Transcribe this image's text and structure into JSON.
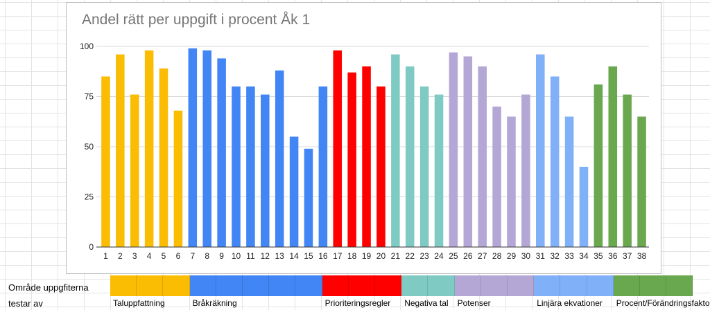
{
  "sheet": {
    "row_label_1": "Område uppgfiterna",
    "row_label_2": "testar av"
  },
  "groups": [
    {
      "name": "Taluppfattning",
      "color": "#fbbc04",
      "tasks": [
        1,
        2,
        3,
        4,
        5,
        6
      ]
    },
    {
      "name": "Bråkräkning",
      "color": "#4285f4",
      "tasks": [
        7,
        8,
        9,
        10,
        11,
        12,
        13,
        14,
        15,
        16
      ]
    },
    {
      "name": "Prioriteringsregler",
      "color": "#ff0000",
      "tasks": [
        17,
        18,
        19,
        20
      ]
    },
    {
      "name": "Negativa tal",
      "color": "#7fcbc4",
      "tasks": [
        21,
        22,
        23,
        24
      ]
    },
    {
      "name": "Potenser",
      "color": "#b4a7d6",
      "tasks": [
        25,
        26,
        27,
        28,
        29,
        30
      ]
    },
    {
      "name": "Linjära ekvationer",
      "color": "#80b0f8",
      "tasks": [
        31,
        32,
        33,
        34
      ]
    },
    {
      "name": "Procent/Förändringsfakto",
      "color": "#6aa84f",
      "tasks": [
        35,
        36,
        37,
        38
      ]
    }
  ],
  "chart_data": {
    "type": "bar",
    "title": "Andel rätt per uppgift i procent Åk 1",
    "xlabel": "",
    "ylabel": "",
    "ylim": [
      0,
      100
    ],
    "yticks": [
      0,
      25,
      50,
      75,
      100
    ],
    "grid": true,
    "legend": "none",
    "categories": [
      "1",
      "2",
      "3",
      "4",
      "5",
      "6",
      "7",
      "8",
      "9",
      "10",
      "11",
      "12",
      "13",
      "14",
      "15",
      "16",
      "17",
      "18",
      "19",
      "20",
      "21",
      "22",
      "23",
      "24",
      "25",
      "26",
      "27",
      "28",
      "29",
      "30",
      "31",
      "32",
      "33",
      "34",
      "35",
      "36",
      "37",
      "38"
    ],
    "values": [
      85,
      96,
      76,
      98,
      89,
      68,
      99,
      98,
      94,
      80,
      80,
      76,
      88,
      55,
      49,
      80,
      98,
      87,
      90,
      80,
      96,
      90,
      80,
      76,
      97,
      95,
      90,
      70,
      65,
      76,
      96,
      85,
      65,
      40,
      81,
      90,
      76,
      65
    ],
    "bar_colors": [
      "#fbbc04",
      "#fbbc04",
      "#fbbc04",
      "#fbbc04",
      "#fbbc04",
      "#fbbc04",
      "#4285f4",
      "#4285f4",
      "#4285f4",
      "#4285f4",
      "#4285f4",
      "#4285f4",
      "#4285f4",
      "#4285f4",
      "#4285f4",
      "#4285f4",
      "#ff0000",
      "#ff0000",
      "#ff0000",
      "#ff0000",
      "#7fcbc4",
      "#7fcbc4",
      "#7fcbc4",
      "#7fcbc4",
      "#b4a7d6",
      "#b4a7d6",
      "#b4a7d6",
      "#b4a7d6",
      "#b4a7d6",
      "#b4a7d6",
      "#80b0f8",
      "#80b0f8",
      "#80b0f8",
      "#80b0f8",
      "#6aa84f",
      "#6aa84f",
      "#6aa84f",
      "#6aa84f"
    ]
  }
}
